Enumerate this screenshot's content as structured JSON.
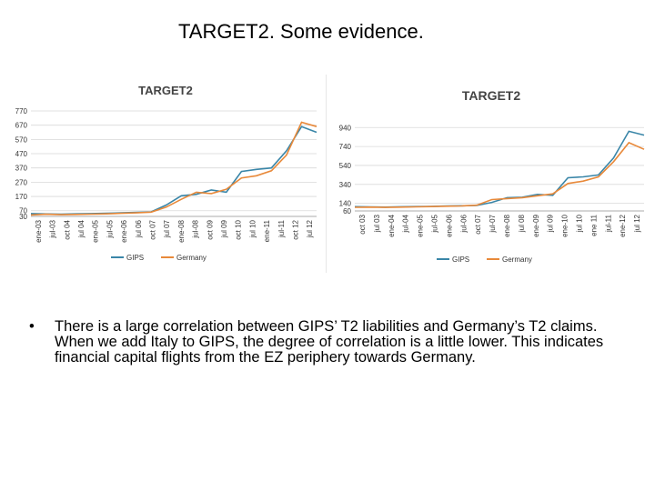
{
  "slide": {
    "title": "TARGET2. Some evidence.",
    "bullet_marker": "•",
    "bullet_text": "There is a large correlation between GIPS’ T2 liabilities and Germany’s T2 claims. When we add Italy to GIPS, the degree of correlation is a little lower. This indicates financial capital flights from the EZ periphery towards Germany."
  },
  "colors": {
    "gips": "#3a86a8",
    "germany": "#e8893a",
    "grid": "#d9d9d9",
    "axis_text": "#333333"
  },
  "chart_data": [
    {
      "type": "line",
      "title": "TARGET2",
      "xlabel": "",
      "ylabel": "",
      "ylim": [
        30,
        770
      ],
      "y_ticks": [
        30,
        70,
        170,
        270,
        370,
        470,
        570,
        670,
        770
      ],
      "x_tick_labels": [
        "ene-03",
        "jul-03",
        "oct 04",
        "jul 04",
        "ene-05",
        "jul-05",
        "ene-06",
        "jul 06",
        "oct 07",
        "jul 07",
        "ene-08",
        "jul-08",
        "oct 09",
        "jul 09",
        "oct 10",
        "jul 10",
        "ene-11",
        "jul-11",
        "oct 12",
        "jul 12"
      ],
      "legend": [
        "GIPS",
        "Germany"
      ],
      "legend_position": "bottom",
      "grid": true,
      "categories": [
        "2003",
        "2003.5",
        "2004",
        "2004.5",
        "2005",
        "2005.5",
        "2006",
        "2006.5",
        "2007",
        "2007.5",
        "2008",
        "2008.5",
        "2009",
        "2009.5",
        "2010",
        "2010.5",
        "2011",
        "2011.5",
        "2012",
        "2012.5"
      ],
      "series": [
        {
          "name": "GIPS",
          "values": [
            50,
            47,
            45,
            48,
            50,
            52,
            55,
            58,
            62,
            110,
            175,
            185,
            215,
            200,
            345,
            360,
            370,
            490,
            660,
            620
          ]
        },
        {
          "name": "Germany",
          "values": [
            40,
            45,
            42,
            44,
            46,
            48,
            52,
            55,
            60,
            95,
            150,
            200,
            190,
            220,
            300,
            315,
            350,
            460,
            690,
            660
          ]
        }
      ]
    },
    {
      "type": "line",
      "title": "TARGET2",
      "xlabel": "",
      "ylabel": "",
      "ylim": [
        60,
        1000
      ],
      "y_ticks": [
        60,
        140,
        340,
        540,
        740,
        940
      ],
      "x_tick_labels": [
        "oct 03",
        "jul 03",
        "ene-04",
        "jul-04",
        "ene-05",
        "jul-05",
        "ene-06",
        "jul-06",
        "oct 07",
        "jul-07",
        "ene-08",
        "jul 08",
        "ene-09",
        "jul 09",
        "ene-10",
        "jul 10",
        "ene 11",
        "jul-11",
        "ene-12",
        "jul 12"
      ],
      "legend": [
        "GIPS",
        "Germany"
      ],
      "legend_position": "bottom",
      "grid": true,
      "categories": [
        "2003",
        "2003.5",
        "2004",
        "2004.5",
        "2005",
        "2005.5",
        "2006",
        "2006.5",
        "2007",
        "2007.5",
        "2008",
        "2008.5",
        "2009",
        "2009.5",
        "2010",
        "2010.5",
        "2011",
        "2011.5",
        "2012",
        "2012.5"
      ],
      "series": [
        {
          "name": "GIPS",
          "values": [
            105,
            102,
            100,
            104,
            106,
            108,
            112,
            115,
            118,
            150,
            200,
            205,
            235,
            225,
            410,
            420,
            440,
            620,
            900,
            860
          ]
        },
        {
          "name": "Germany",
          "values": [
            98,
            100,
            97,
            100,
            103,
            106,
            110,
            113,
            120,
            180,
            190,
            200,
            220,
            240,
            350,
            375,
            420,
            580,
            780,
            710
          ]
        }
      ]
    }
  ]
}
